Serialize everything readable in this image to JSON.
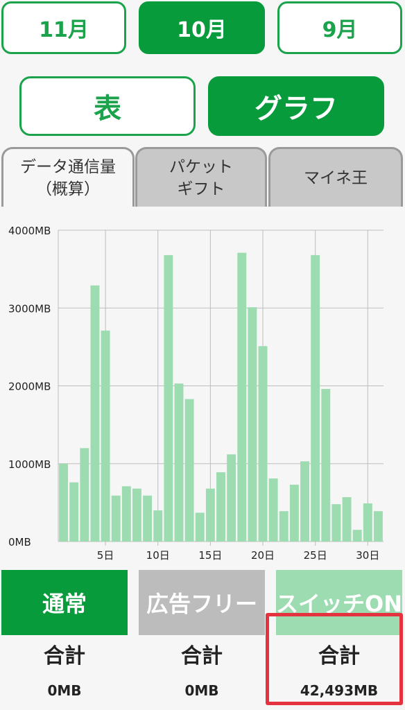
{
  "months": [
    {
      "label": "11月",
      "active": false
    },
    {
      "label": "10月",
      "active": true
    },
    {
      "label": "9月",
      "active": false
    }
  ],
  "view_toggle": {
    "table_label": "表",
    "graph_label": "グラフ",
    "active": "graph"
  },
  "tabs": [
    {
      "line1": "データ通信量",
      "line2": "（概算）",
      "active": true
    },
    {
      "line1": "パケット",
      "line2": "ギフト",
      "active": false
    },
    {
      "line1": "マイネ王",
      "line2": "",
      "active": false
    }
  ],
  "colors": {
    "brand_green": "#079b3c",
    "bar_green": "#9ddcb1",
    "disabled_gray": "#bcbcbc",
    "highlight_red": "#e4323f"
  },
  "chart_data": {
    "type": "bar",
    "x": [
      1,
      2,
      3,
      4,
      5,
      6,
      7,
      8,
      9,
      10,
      11,
      12,
      13,
      14,
      15,
      16,
      17,
      18,
      19,
      20,
      21,
      22,
      23,
      24,
      25,
      26,
      27,
      28,
      29,
      30,
      31
    ],
    "values": [
      1000,
      760,
      1200,
      3290,
      2710,
      590,
      710,
      680,
      590,
      400,
      3680,
      2030,
      1830,
      370,
      680,
      890,
      1120,
      3710,
      3010,
      2510,
      810,
      390,
      730,
      1030,
      3680,
      1960,
      480,
      570,
      150,
      490,
      390
    ],
    "x_tick_labels": [
      "5日",
      "10日",
      "15日",
      "20日",
      "25日",
      "30日"
    ],
    "x_ticks": [
      5,
      10,
      15,
      20,
      25,
      30
    ],
    "y_tick_labels": [
      "0MB",
      "1000MB",
      "2000MB",
      "3000MB",
      "4000MB"
    ],
    "y_ticks": [
      0,
      1000,
      2000,
      3000,
      4000
    ],
    "ylim": [
      0,
      4000
    ],
    "grid": true
  },
  "summary": [
    {
      "title": "通常",
      "label": "合計",
      "value": "0MB",
      "color": "#079b3c"
    },
    {
      "title": "広告フリー",
      "label": "合計",
      "value": "0MB",
      "color": "#bcbcbc"
    },
    {
      "title": "スイッチON",
      "label": "合計",
      "value": "42,493MB",
      "color": "#9ddcb1"
    }
  ]
}
